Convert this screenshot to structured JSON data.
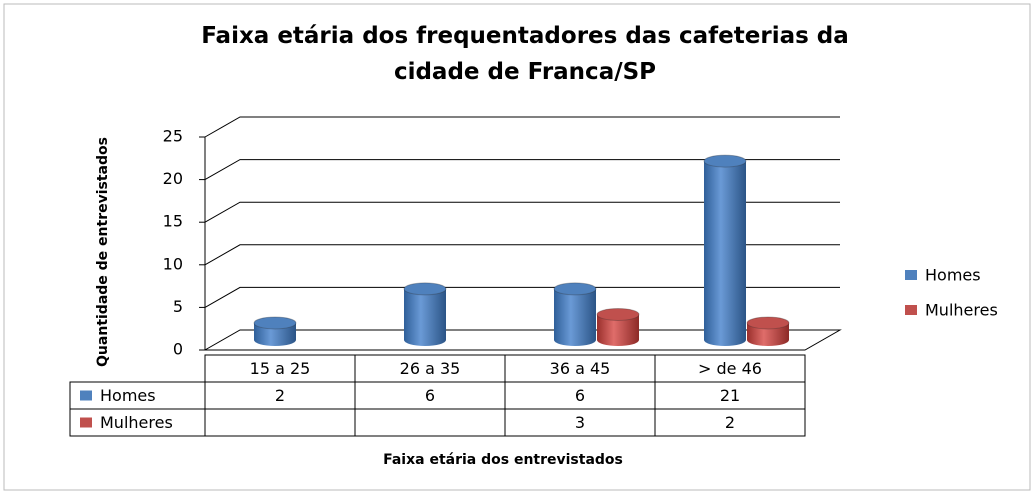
{
  "chart_data": {
    "type": "bar3d",
    "title": "Faixa etária dos frequentadores das cafeterias da cidade de Franca/SP",
    "x_label": "Faixa etária dos entrevistados",
    "y_label": "Quantidade de entrevistados",
    "categories": [
      "15 a 25",
      "26 a 35",
      "36 a 45",
      "> de 46"
    ],
    "series": [
      {
        "name": "Homes",
        "color": "#4f81bd",
        "values": [
          2,
          6,
          6,
          21
        ]
      },
      {
        "name": "Mulheres",
        "color": "#c0504d",
        "values": [
          null,
          null,
          3,
          2
        ]
      }
    ],
    "ylim": [
      0,
      25
    ],
    "yticks": [
      0,
      5,
      10,
      15,
      20,
      25
    ],
    "grid": true,
    "legend": "right",
    "data_table": true
  }
}
